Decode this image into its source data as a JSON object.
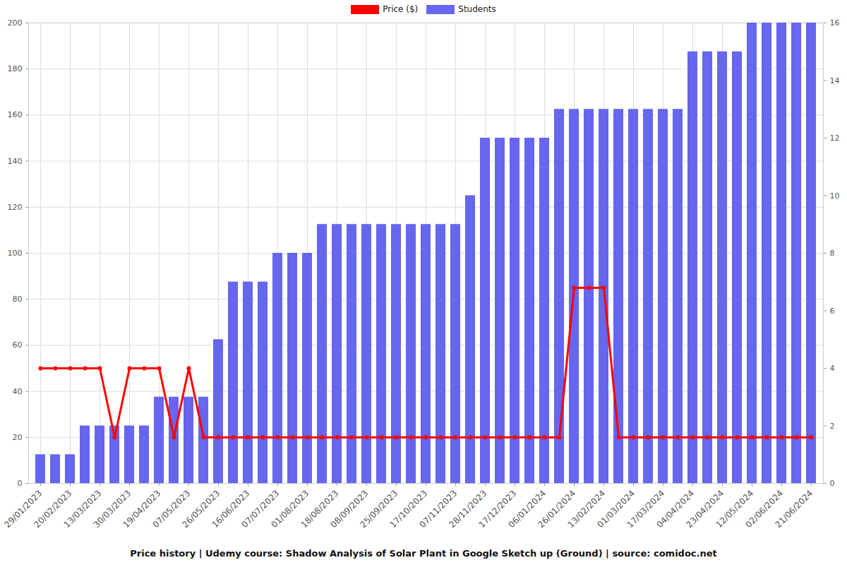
{
  "chart_data": {
    "type": "bar",
    "title": "Price history | Udemy course: Shadow Analysis of Solar Plant in Google Sketch up (Ground) | source: comidoc.net",
    "categories": [
      "29/01/2023",
      null,
      "20/02/2023",
      null,
      "13/03/2023",
      null,
      "30/03/2023",
      null,
      "19/04/2023",
      null,
      "07/05/2023",
      null,
      "26/05/2023",
      null,
      "16/06/2023",
      null,
      "07/07/2023",
      null,
      "01/08/2023",
      null,
      "18/08/2023",
      null,
      "08/09/2023",
      null,
      "25/09/2023",
      null,
      "17/10/2023",
      null,
      "07/11/2023",
      null,
      "28/11/2023",
      null,
      "17/12/2023",
      null,
      "06/01/2024",
      null,
      "26/01/2024",
      null,
      "13/02/2024",
      null,
      "01/03/2024",
      null,
      "17/03/2024",
      null,
      "04/04/2024",
      null,
      "23/04/2024",
      null,
      "12/05/2024",
      null,
      "02/06/2024",
      null,
      "21/06/2024"
    ],
    "series": [
      {
        "name": "Price ($)",
        "type": "line",
        "color": "#ff0000",
        "marker": "circle",
        "values": [
          50,
          50,
          50,
          50,
          50,
          20,
          50,
          50,
          50,
          20,
          50,
          20,
          20,
          20,
          20,
          20,
          20,
          20,
          20,
          20,
          20,
          20,
          20,
          20,
          20,
          20,
          20,
          20,
          20,
          20,
          20,
          20,
          20,
          20,
          20,
          20,
          85,
          85,
          85,
          20,
          20,
          20,
          20,
          20,
          20,
          20,
          20,
          20,
          20,
          20,
          20,
          20,
          20
        ]
      },
      {
        "name": "Students",
        "type": "bar",
        "color": "#6666ee",
        "axis": "y2",
        "values": [
          1,
          1,
          1,
          2,
          2,
          2,
          2,
          2,
          3,
          3,
          3,
          3,
          5,
          7,
          7,
          7,
          8,
          8,
          8,
          9,
          9,
          9,
          9,
          9,
          9,
          9,
          9,
          9,
          9,
          10,
          12,
          12,
          12,
          12,
          12,
          13,
          13,
          13,
          13,
          13,
          13,
          13,
          13,
          13,
          15,
          15,
          15,
          15,
          16,
          16,
          16,
          16,
          16
        ]
      }
    ],
    "ylim": [
      0,
      200
    ],
    "yticks": [
      0,
      20,
      40,
      60,
      80,
      100,
      120,
      140,
      160,
      180,
      200
    ],
    "y2lim": [
      0,
      16
    ],
    "y2ticks": [
      0,
      2,
      4,
      6,
      8,
      10,
      12,
      14,
      16
    ],
    "grid": true,
    "legend": "top"
  }
}
